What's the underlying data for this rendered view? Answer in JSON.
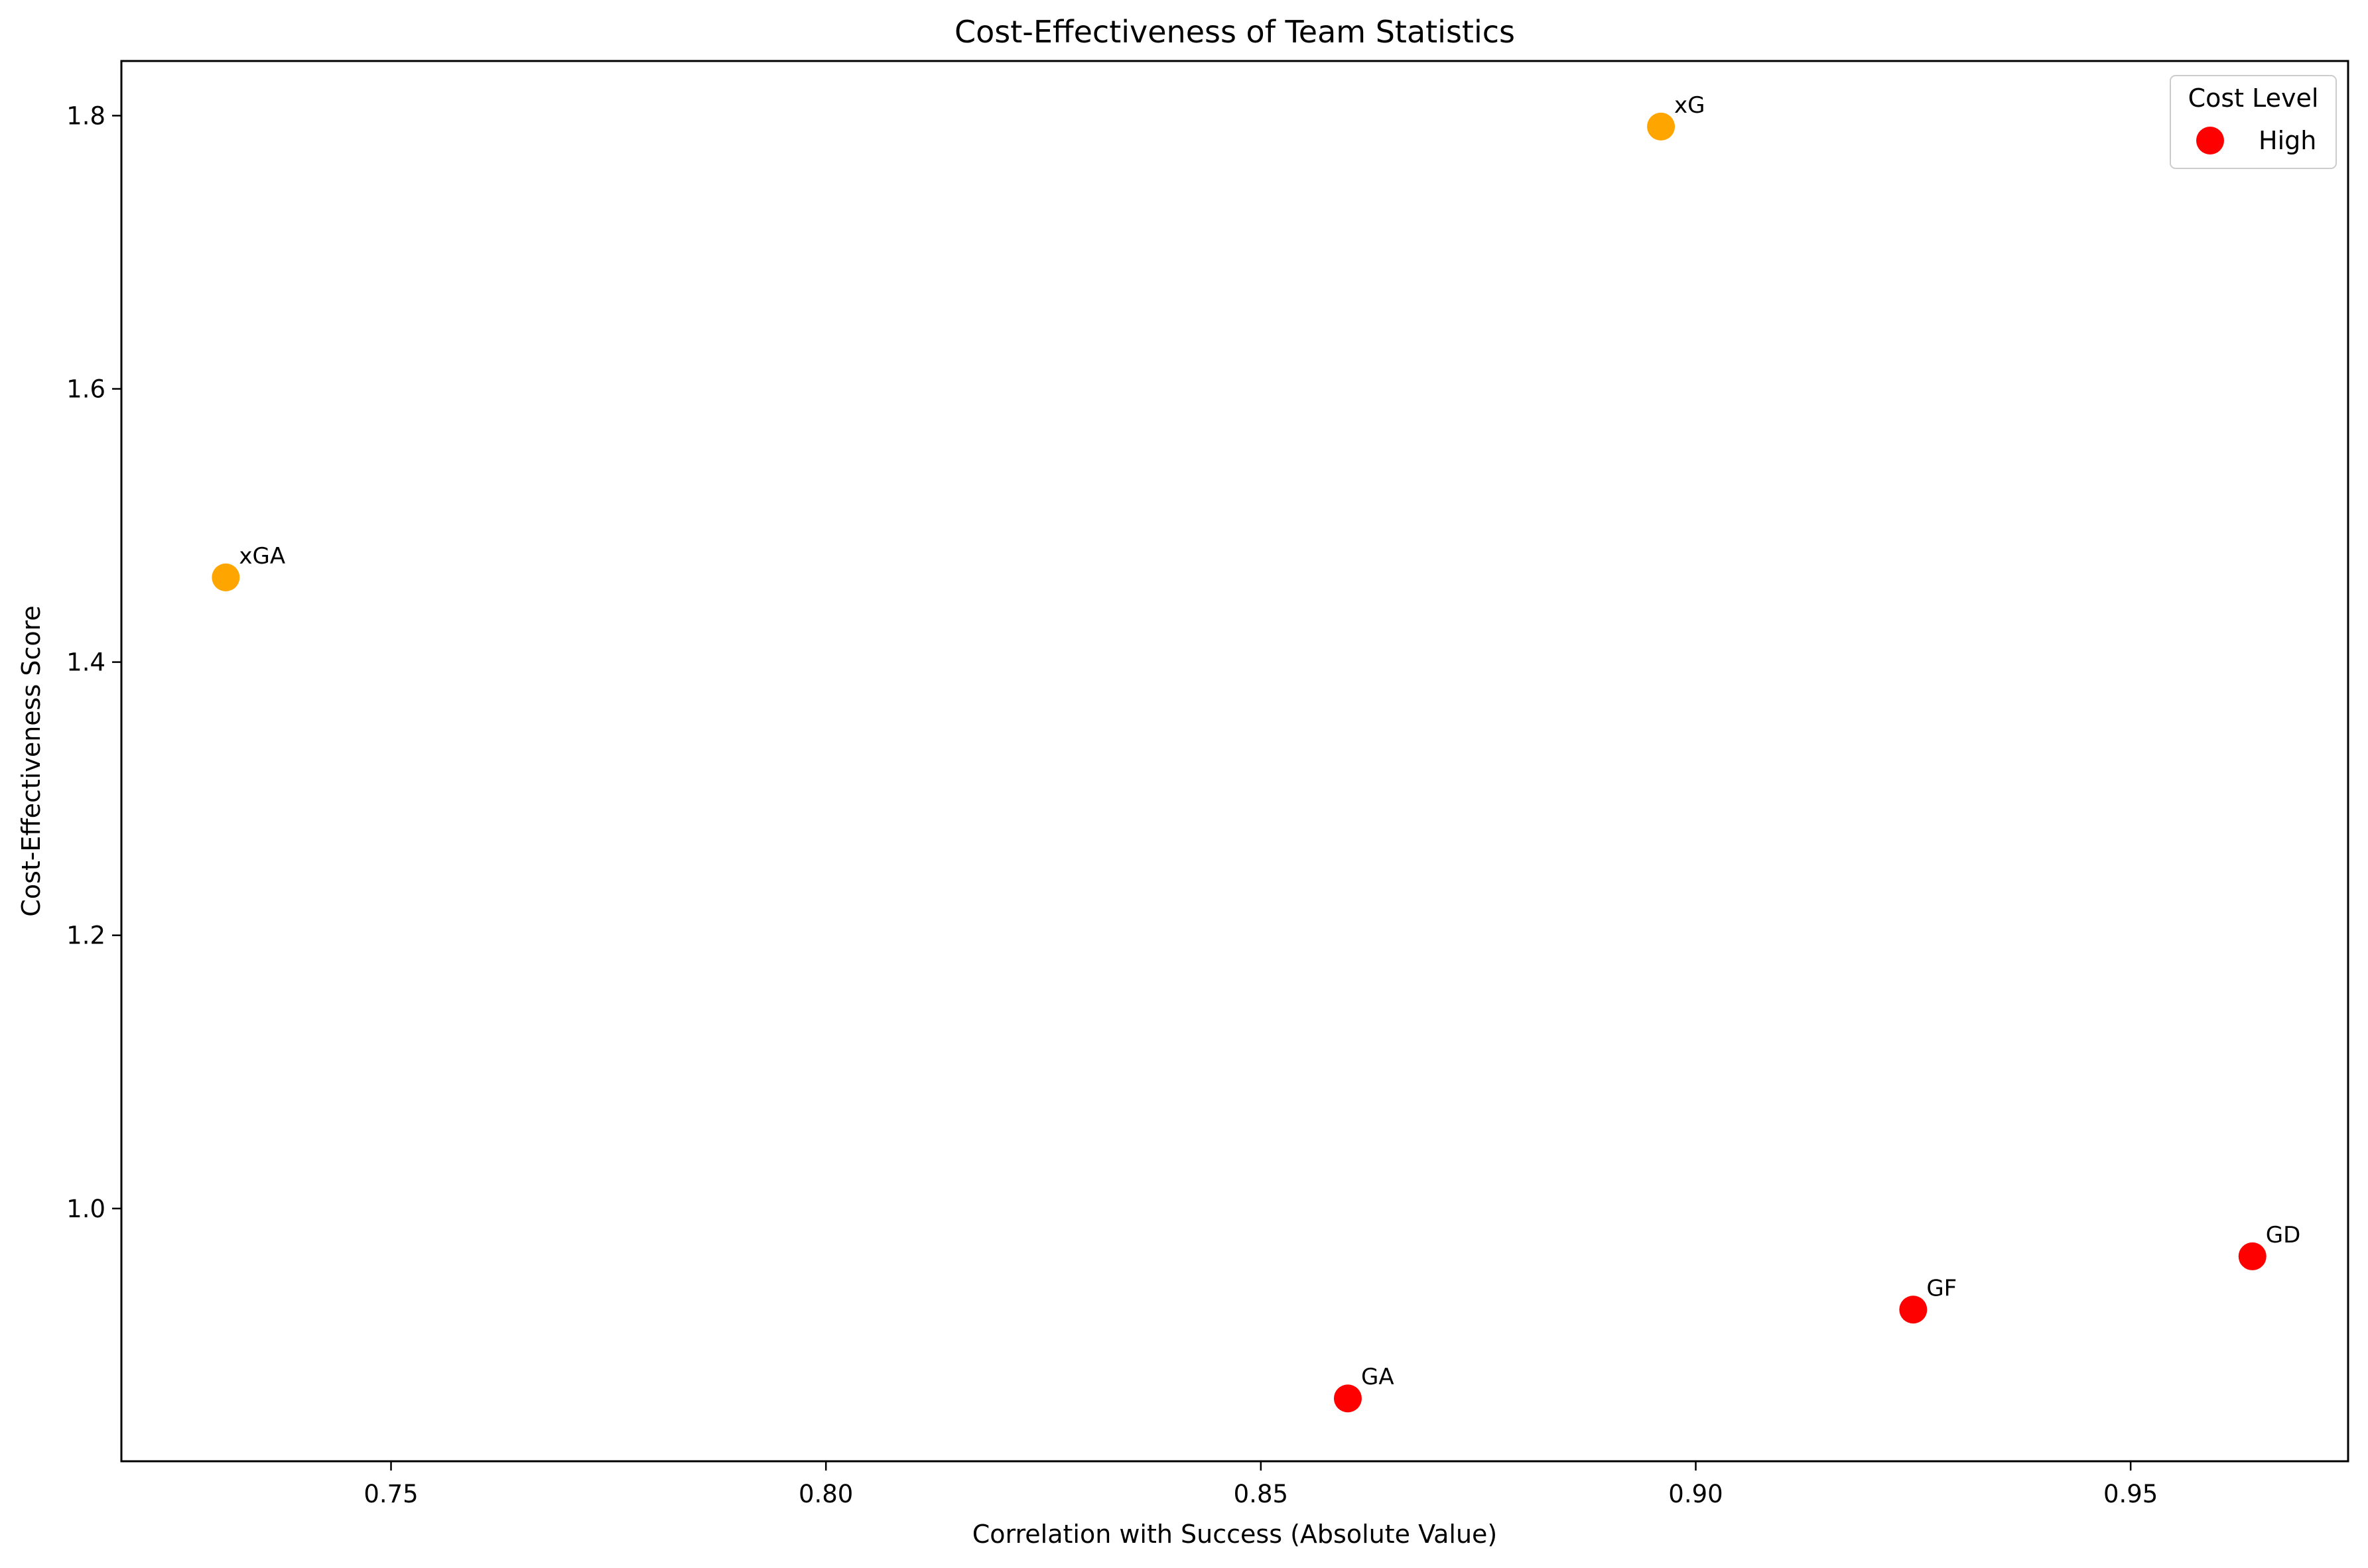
{
  "chart_data": {
    "type": "scatter",
    "title": "Cost-Effectiveness of Team Statistics",
    "xlabel": "Correlation with Success (Absolute Value)",
    "ylabel": "Cost-Effectiveness Score",
    "xlim": [
      0.719,
      0.975
    ],
    "ylim": [
      0.815,
      1.84
    ],
    "xticks": [
      0.75,
      0.8,
      0.85,
      0.9,
      0.95
    ],
    "yticks": [
      1.0,
      1.2,
      1.4,
      1.6,
      1.8
    ],
    "xtick_labels": [
      "0.75",
      "0.80",
      "0.85",
      "0.90",
      "0.95"
    ],
    "ytick_labels": [
      "1.0",
      "1.2",
      "1.4",
      "1.6",
      "1.8"
    ],
    "grid": false,
    "legend": {
      "title": "Cost Level",
      "placement": "top-right",
      "entries": [
        {
          "label": "High",
          "color": "#ff0000"
        }
      ]
    },
    "points": [
      {
        "label": "xGA",
        "x": 0.731,
        "y": 1.462,
        "color": "#ffa500"
      },
      {
        "label": "xG",
        "x": 0.896,
        "y": 1.792,
        "color": "#ffa500"
      },
      {
        "label": "GA",
        "x": 0.86,
        "y": 0.861,
        "color": "#ff0000"
      },
      {
        "label": "GF",
        "x": 0.925,
        "y": 0.926,
        "color": "#ff0000"
      },
      {
        "label": "GD",
        "x": 0.964,
        "y": 0.965,
        "color": "#ff0000"
      }
    ]
  }
}
